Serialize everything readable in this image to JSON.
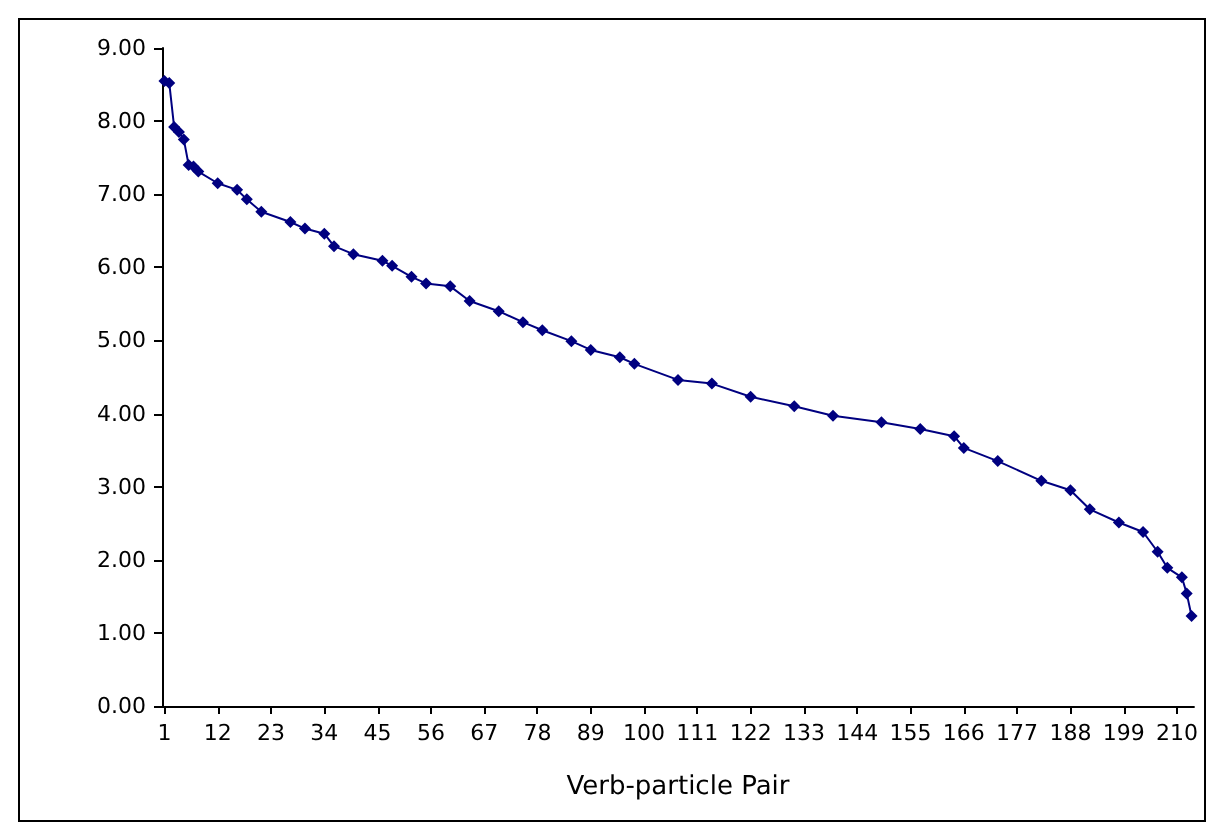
{
  "chart_data": {
    "type": "line",
    "xlabel": "Verb-particle Pair",
    "x": [
      1,
      2,
      3,
      4,
      5,
      6,
      7,
      8,
      12,
      16,
      18,
      21,
      27,
      30,
      34,
      36,
      40,
      46,
      48,
      52,
      55,
      60,
      64,
      70,
      75,
      79,
      85,
      89,
      95,
      98,
      107,
      114,
      122,
      131,
      139,
      149,
      157,
      164,
      166,
      173,
      182,
      188,
      192,
      198,
      203,
      206,
      208,
      211,
      212,
      213
    ],
    "series": [
      {
        "color": "#000080",
        "values": [
          8.55,
          8.52,
          7.92,
          7.85,
          7.75,
          7.4,
          7.38,
          7.31,
          7.15,
          7.06,
          6.93,
          6.76,
          6.62,
          6.53,
          6.46,
          6.29,
          6.18,
          6.09,
          6.02,
          5.87,
          5.78,
          5.74,
          5.54,
          5.4,
          5.25,
          5.14,
          4.99,
          4.87,
          4.77,
          4.68,
          4.46,
          4.41,
          4.23,
          4.1,
          3.97,
          3.88,
          3.79,
          3.69,
          3.53,
          3.35,
          3.08,
          2.95,
          2.69,
          2.51,
          2.38,
          2.11,
          1.89,
          1.76,
          1.54,
          1.23
        ]
      }
    ],
    "xlim": [
      0.5,
      213.5
    ],
    "xticks": [
      1,
      12,
      23,
      34,
      45,
      56,
      67,
      78,
      89,
      100,
      111,
      122,
      133,
      144,
      155,
      166,
      177,
      188,
      199,
      210
    ],
    "ylim": [
      0,
      9
    ],
    "yticks": [
      {
        "value": 0,
        "label": "0.00"
      },
      {
        "value": 1,
        "label": "1.00"
      },
      {
        "value": 2,
        "label": "2.00"
      },
      {
        "value": 3,
        "label": "3.00"
      },
      {
        "value": 4,
        "label": "4.00"
      },
      {
        "value": 5,
        "label": "5.00"
      },
      {
        "value": 6,
        "label": "6.00"
      },
      {
        "value": 7,
        "label": "7.00"
      },
      {
        "value": 8,
        "label": "8.00"
      },
      {
        "value": 9,
        "label": "9.00"
      }
    ],
    "grid": false,
    "marker": "diamond",
    "line_style": "solid"
  }
}
